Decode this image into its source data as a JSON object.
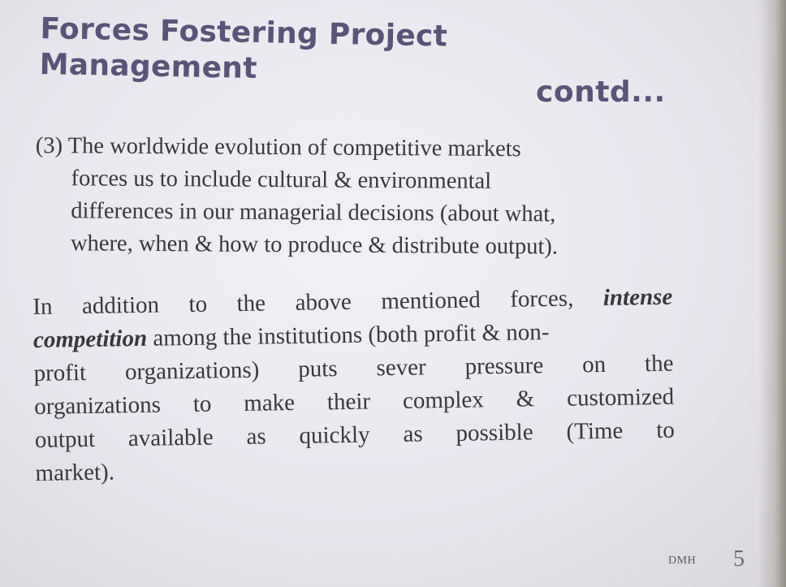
{
  "slide": {
    "title": "Forces Fostering Project Management",
    "title_cont": "contd...",
    "point3": {
      "lines": [
        "(3) The worldwide evolution of competitive markets",
        "forces us to include cultural & environmental",
        "differences in our managerial decisions (about what,",
        "where, when & how to produce & distribute output)."
      ]
    },
    "addition": {
      "line1_words": [
        "In",
        "addition",
        "to",
        "the",
        "above",
        "mentioned",
        "forces,"
      ],
      "emphasis_a": "intense",
      "emphasis_b": "competition",
      "line2_rest": " among the institutions (both profit & non-",
      "line3_words": [
        "profit",
        "organizations)",
        "puts",
        "sever",
        "pressure",
        "on",
        "the"
      ],
      "line4_words": [
        "organizations",
        "to",
        "make",
        "their",
        "complex",
        "&",
        "customized"
      ],
      "line5_words": [
        "output",
        "available",
        "as",
        "quickly",
        "as",
        "possible",
        "(Time",
        "to"
      ],
      "line6": "market)."
    },
    "footer": {
      "author": "DMH",
      "page_number": "5"
    }
  }
}
